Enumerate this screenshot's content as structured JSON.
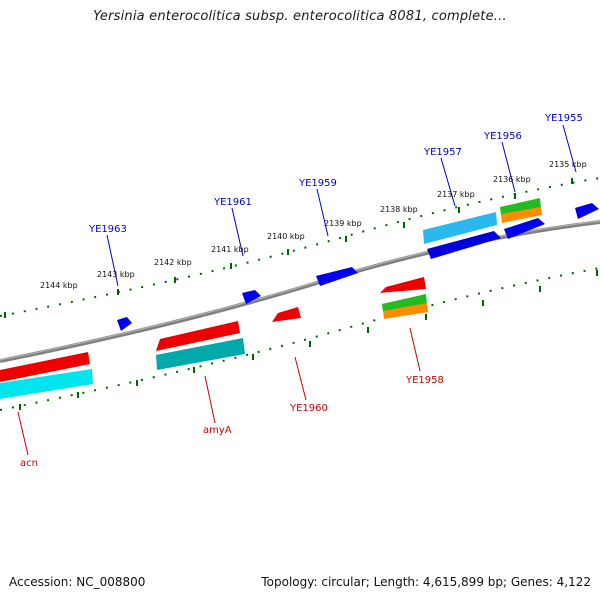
{
  "title": "Yersinia enterocolitica subsp. enterocolitica 8081, complete...",
  "footer": {
    "accession": "Accession: NC_008800",
    "stats": "Topology: circular; Length: 4,615,899 bp; Genes: 4,122"
  },
  "ticks": [
    "2144 kbp",
    "2143 kbp",
    "2142 kbp",
    "2141 kbp",
    "2140 kbp",
    "2139 kbp",
    "2138 kbp",
    "2137 kbp",
    "2136 kbp",
    "2135 kbp"
  ],
  "genes_top": [
    "YE1963",
    "YE1961",
    "YE1959",
    "YE1957",
    "YE1956",
    "YE1955"
  ],
  "genes_bottom": [
    "acn",
    "amyA",
    "YE1960",
    "YE1958"
  ],
  "colors": {
    "forward_cds": "#0000ee",
    "reverse_cds": "#ee0000",
    "backbone": "#808080",
    "tick_marks": "#006400",
    "cyan_track": "#00e5ee",
    "teal_track": "#00aaaa",
    "green_track": "#22bb22",
    "orange_track": "#ff8c00"
  }
}
